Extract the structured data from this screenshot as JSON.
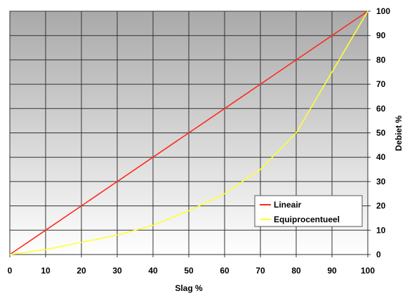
{
  "chart_data": {
    "type": "line",
    "xlabel": "Slag %",
    "ylabel": "Debiet %",
    "xlim": [
      0,
      100
    ],
    "ylim": [
      0,
      100
    ],
    "x_ticks": [
      "0",
      "10",
      "20",
      "30",
      "40",
      "50",
      "60",
      "70",
      "80",
      "90",
      "100"
    ],
    "y_ticks": [
      "0",
      "10",
      "20",
      "30",
      "40",
      "50",
      "60",
      "70",
      "80",
      "90",
      "100"
    ],
    "grid": true,
    "legend_position": "bottom-right",
    "series": [
      {
        "name": "Lineair",
        "color": "#ff2a1f",
        "x": [
          0,
          10,
          20,
          30,
          40,
          50,
          60,
          70,
          80,
          90,
          100
        ],
        "y": [
          0,
          10,
          20,
          30,
          40,
          50,
          60,
          70,
          80,
          90,
          100
        ]
      },
      {
        "name": "Equiprocentueel",
        "color": "#ffff33",
        "x": [
          0,
          10,
          20,
          30,
          40,
          50,
          60,
          70,
          80,
          90,
          100
        ],
        "y": [
          0,
          2,
          5,
          8,
          12,
          18,
          25,
          35,
          50,
          75,
          100
        ]
      }
    ]
  }
}
